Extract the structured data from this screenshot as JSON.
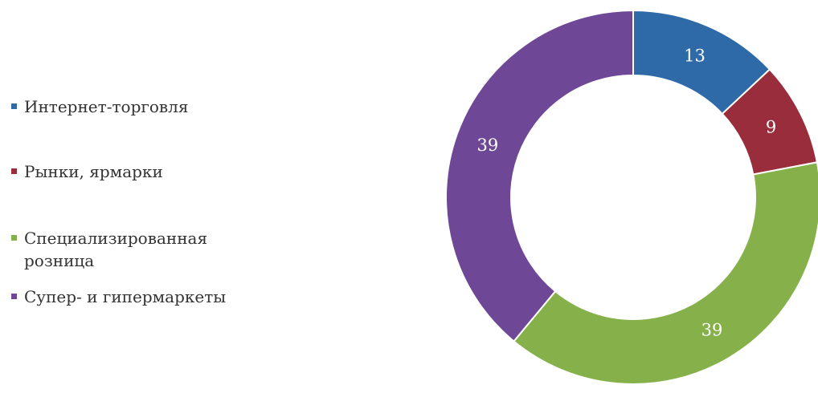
{
  "chart_data": {
    "type": "donut",
    "title": "",
    "categories": [
      "Интернет-торговля",
      "Рынки, ярмарки",
      "Специализированная розница",
      "Супер- и гипермаркеты"
    ],
    "values": [
      13,
      9,
      39,
      39
    ],
    "labels": [
      "13",
      "9",
      "39",
      "39"
    ],
    "colors": [
      "#2f6aa8",
      "#9a2d3c",
      "#86b14a",
      "#6e4796"
    ],
    "legend_position": "left",
    "data_labels": true,
    "grid": false
  },
  "legend": {
    "items": [
      {
        "label": "Интернет-торговля",
        "color": "#2f6aa8"
      },
      {
        "label": "Рынки, ярмарки",
        "color": "#9a2d3c"
      },
      {
        "label": "Специализированная\nрозница",
        "color": "#86b14a"
      },
      {
        "label": "Супер- и гипермаркеты",
        "color": "#6e4796"
      }
    ]
  }
}
